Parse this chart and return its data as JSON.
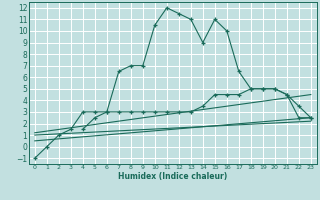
{
  "bg_color": "#c2e0e0",
  "grid_color": "#ffffff",
  "line_color": "#1a6b5a",
  "xlabel": "Humidex (Indice chaleur)",
  "xlim": [
    -0.5,
    23.5
  ],
  "ylim": [
    -1.5,
    12.5
  ],
  "xticks": [
    0,
    1,
    2,
    3,
    4,
    5,
    6,
    7,
    8,
    9,
    10,
    11,
    12,
    13,
    14,
    15,
    16,
    17,
    18,
    19,
    20,
    21,
    22,
    23
  ],
  "yticks": [
    -1,
    0,
    1,
    2,
    3,
    4,
    5,
    6,
    7,
    8,
    9,
    10,
    11,
    12
  ],
  "curve1_x": [
    0,
    1,
    2,
    3,
    4,
    5,
    6,
    7,
    8,
    9,
    10,
    11,
    12,
    13,
    14,
    15,
    16,
    17,
    18,
    19,
    20,
    21,
    22,
    23
  ],
  "curve1_y": [
    -1,
    0,
    1,
    1.5,
    3,
    3,
    3,
    6.5,
    7,
    7,
    10.5,
    12,
    11.5,
    11,
    9,
    11,
    10,
    6.5,
    5,
    5,
    5,
    4.5,
    2.5,
    2.5
  ],
  "curve2_x": [
    4,
    5,
    6,
    7,
    8,
    9,
    10,
    11,
    12,
    13,
    14,
    15,
    16,
    17,
    18,
    19,
    20,
    21,
    22,
    23
  ],
  "curve2_y": [
    1.5,
    2.5,
    3,
    3,
    3,
    3,
    3,
    3,
    3,
    3,
    3.5,
    4.5,
    4.5,
    4.5,
    5,
    5,
    5,
    4.5,
    3.5,
    2.5
  ],
  "line1_x": [
    0,
    23
  ],
  "line1_y": [
    0.5,
    2.5
  ],
  "line2_x": [
    0,
    23
  ],
  "line2_y": [
    1.0,
    2.2
  ],
  "line3_x": [
    0,
    23
  ],
  "line3_y": [
    1.2,
    4.5
  ]
}
